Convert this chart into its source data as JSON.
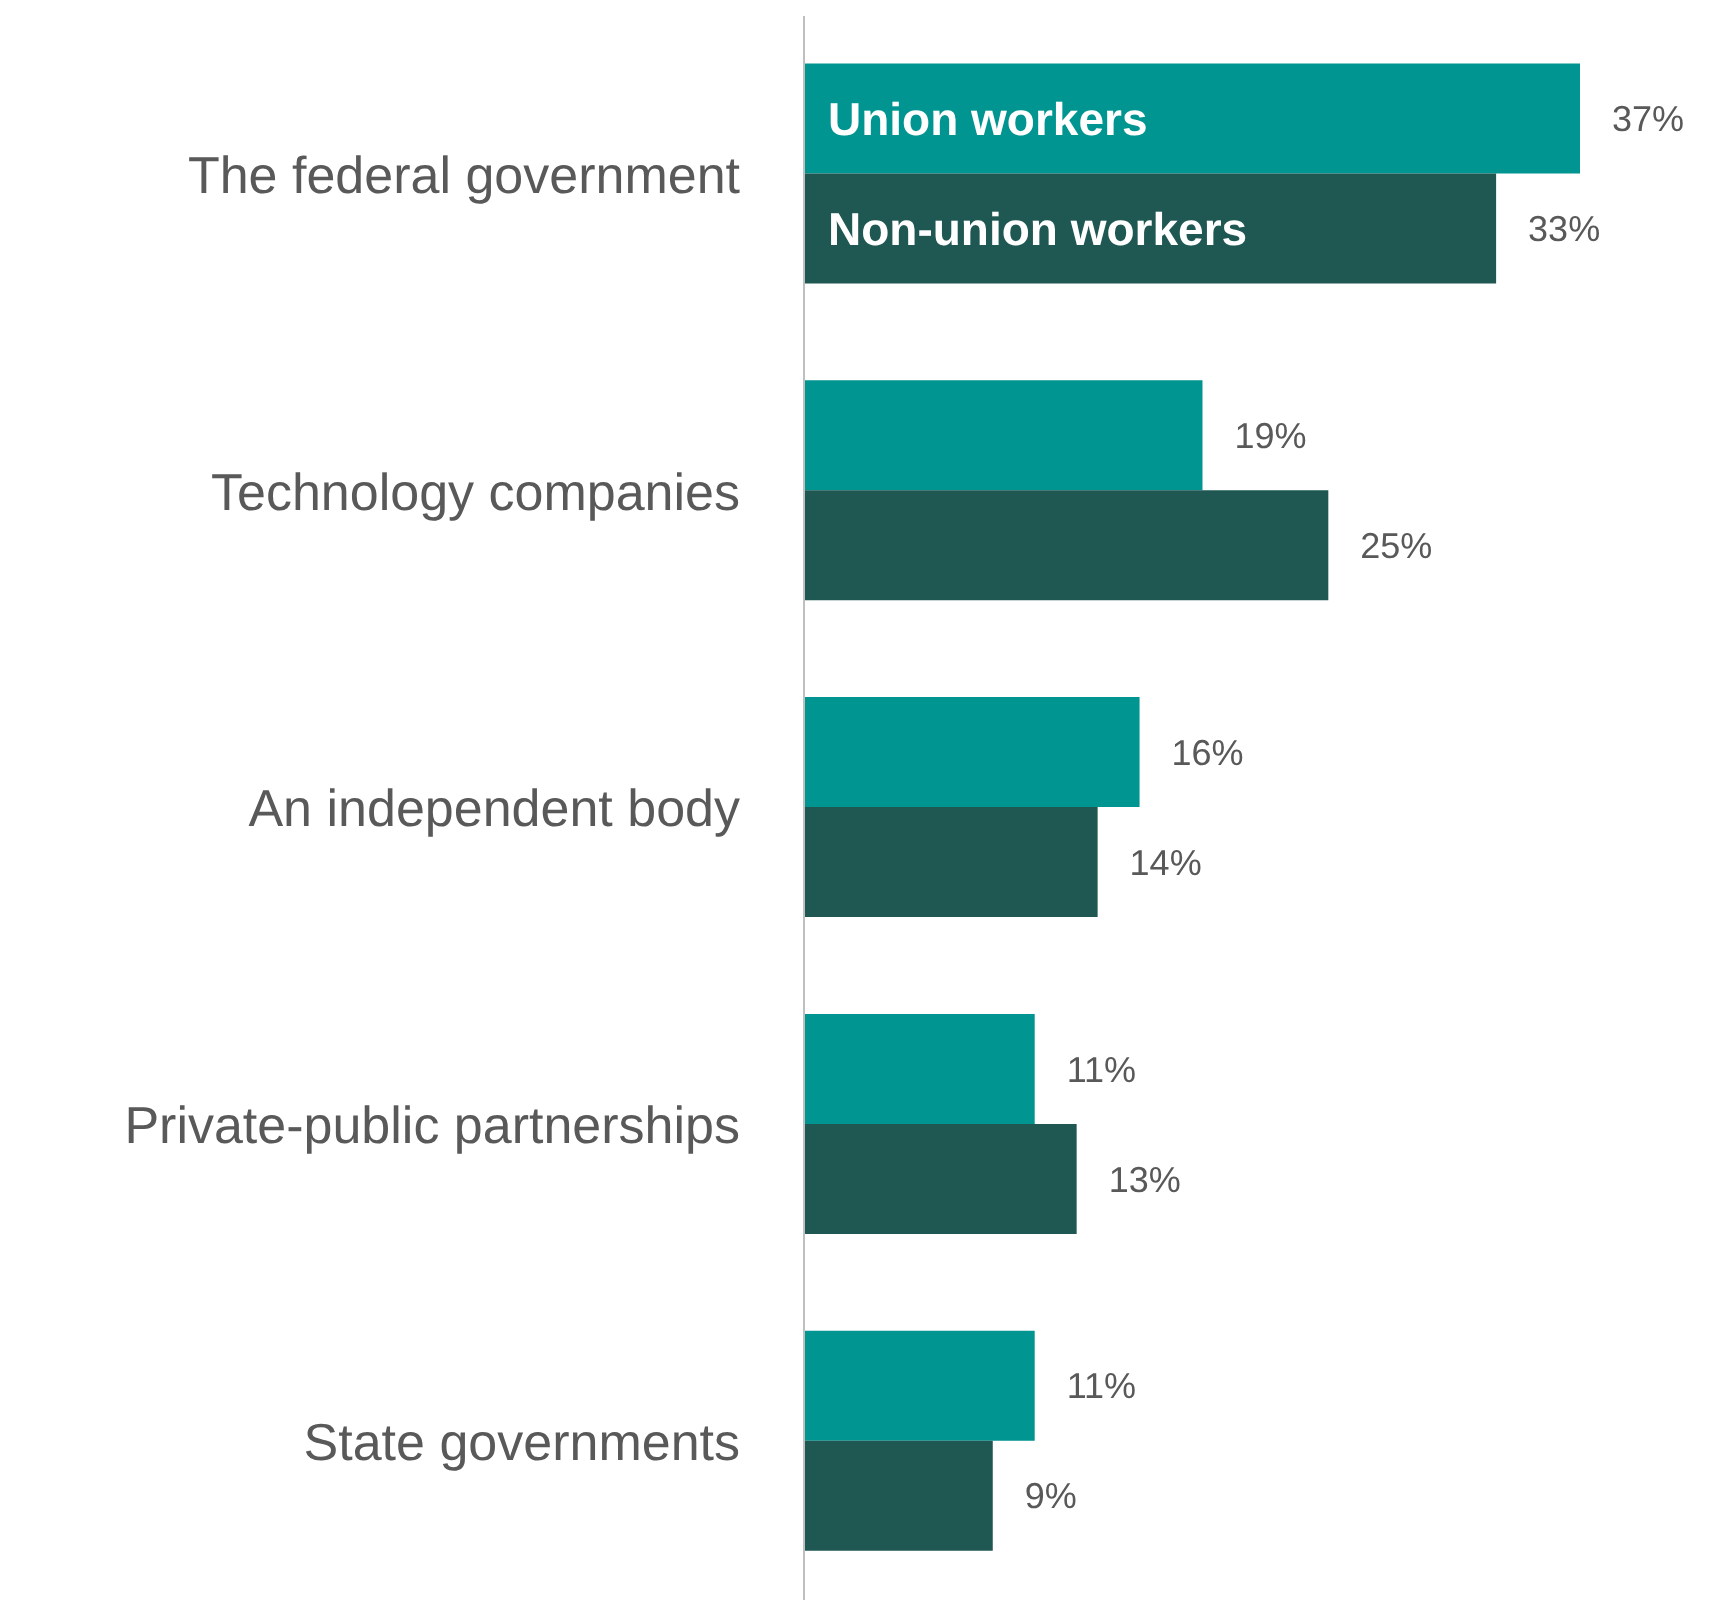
{
  "chart_data": {
    "type": "bar",
    "orientation": "horizontal",
    "categories": [
      "The federal government",
      "Technology companies",
      "An independent body",
      "Private-public partnerships",
      "State governments"
    ],
    "series": [
      {
        "name": "Union workers",
        "color": "#009591",
        "values": [
          37,
          19,
          16,
          11,
          11
        ],
        "value_labels": [
          "37%",
          "19%",
          "16%",
          "11%",
          "11%"
        ]
      },
      {
        "name": "Non-union workers",
        "color": "#1f5753",
        "values": [
          33,
          25,
          14,
          13,
          9
        ],
        "value_labels": [
          "33%",
          "25%",
          "14%",
          "13%",
          "9%"
        ]
      }
    ]
  }
}
